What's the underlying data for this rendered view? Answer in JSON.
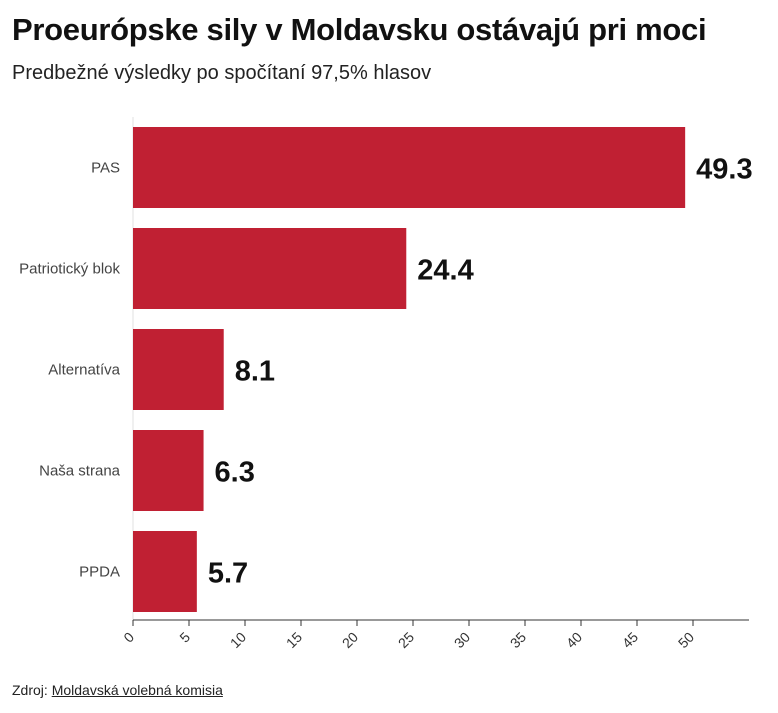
{
  "header": {
    "title": "Proeurópske sily v Moldavsku ostávajú pri moci",
    "subtitle": "Predbežné výsledky po spočítaní 97,5% hlasov"
  },
  "footer": {
    "source_label": "Zdroj:",
    "source_name": "Moldavská volebná komisia"
  },
  "colors": {
    "bar": "#c02033",
    "axis": "#333333",
    "grid": "#e2e2e2"
  },
  "chart_data": {
    "type": "bar",
    "orientation": "horizontal",
    "categories": [
      "PAS",
      "Patriotický blok",
      "Alternatíva",
      "Naša strana",
      "PPDA"
    ],
    "values": [
      49.3,
      24.4,
      8.1,
      6.3,
      5.7
    ],
    "value_labels": [
      "49.3",
      "24.4",
      "8.1",
      "6.3",
      "5.7"
    ],
    "xlim": [
      0,
      55
    ],
    "x_ticks": [
      0,
      5,
      10,
      15,
      20,
      25,
      30,
      35,
      40,
      45,
      50
    ],
    "grid": false,
    "legend": "none"
  }
}
